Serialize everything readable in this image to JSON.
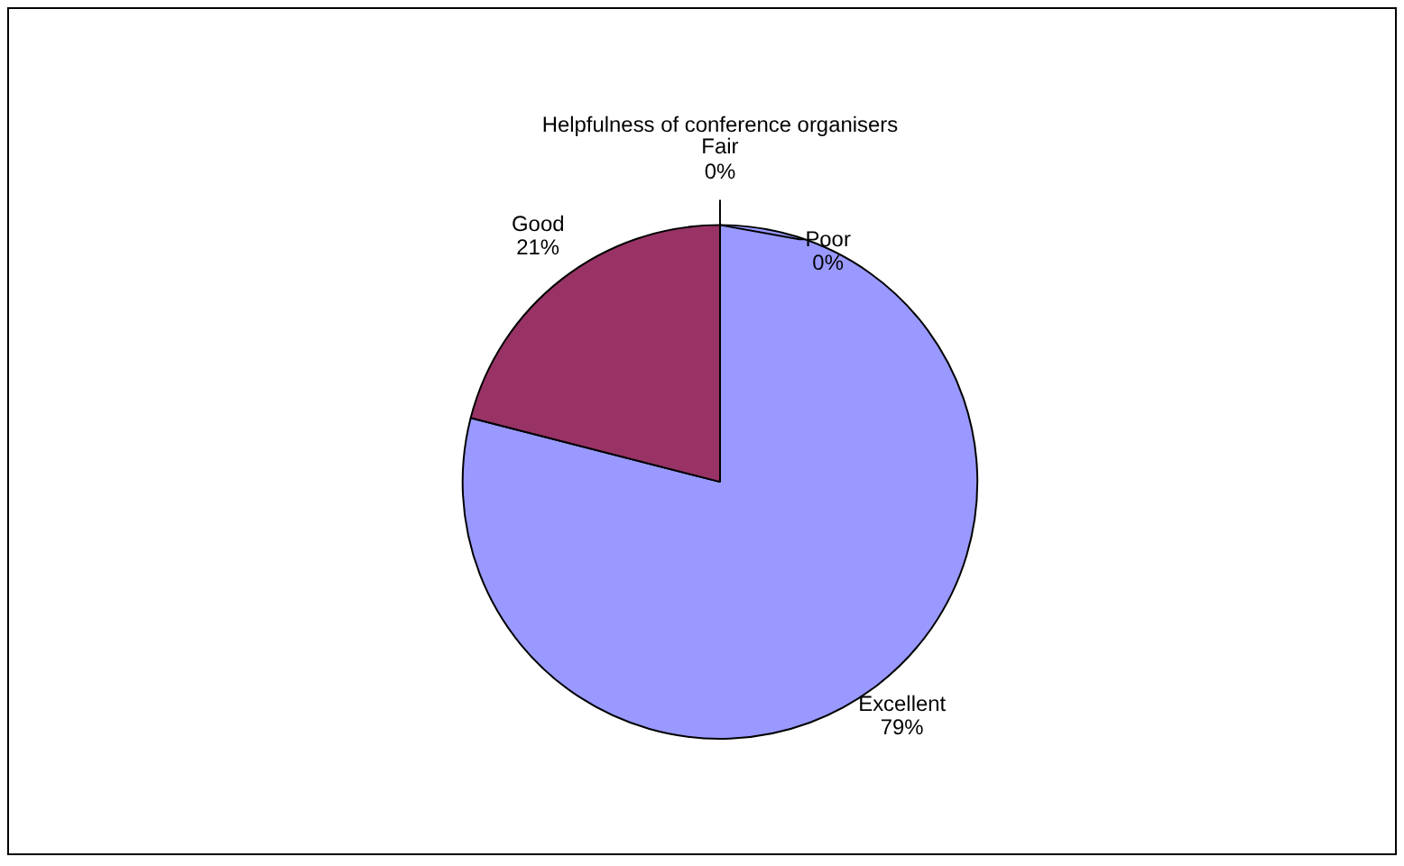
{
  "chart_data": {
    "type": "pie",
    "title": "Helpfulness of conference organisers",
    "categories": [
      "Excellent",
      "Good",
      "Fair",
      "Poor"
    ],
    "values": [
      79,
      21,
      0,
      0
    ],
    "colors": [
      "#9999ff",
      "#993366",
      "#ffffcc",
      "#ccffff"
    ],
    "value_labels": [
      "79%",
      "21%",
      "0%",
      "0%"
    ]
  }
}
